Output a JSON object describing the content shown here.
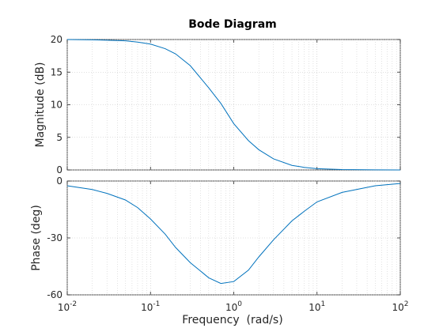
{
  "chart_data": {
    "type": "line",
    "title": "Bode Diagram",
    "xlabel": "Frequency  (rad/s)",
    "x_scale": "log",
    "xlim": [
      0.01,
      100
    ],
    "x_ticks": [
      0.01,
      0.1,
      1,
      10,
      100
    ],
    "x_tick_labels": [
      {
        "base": "10",
        "exp": "-2"
      },
      {
        "base": "10",
        "exp": "-1"
      },
      {
        "base": "10",
        "exp": "0"
      },
      {
        "base": "10",
        "exp": "1"
      },
      {
        "base": "10",
        "exp": "2"
      }
    ],
    "grid": true,
    "x": [
      0.01,
      0.02,
      0.03,
      0.05,
      0.07,
      0.1,
      0.15,
      0.2,
      0.3,
      0.5,
      0.7,
      1,
      1.5,
      2,
      3,
      5,
      7,
      10,
      20,
      50,
      100
    ],
    "panels": [
      {
        "ylabel": "Magnitude (dB)",
        "ylim": [
          0,
          20
        ],
        "y_ticks": [
          0,
          5,
          10,
          15,
          20
        ],
        "y_tick_labels": [
          "0",
          "5",
          "10",
          "15",
          "20"
        ],
        "y": [
          20,
          19.95,
          19.9,
          19.8,
          19.6,
          19.3,
          18.6,
          17.8,
          16.0,
          12.6,
          10.2,
          7.1,
          4.5,
          3.1,
          1.7,
          0.7,
          0.4,
          0.2,
          0.06,
          0.01,
          0
        ]
      },
      {
        "ylabel": "Phase (deg)",
        "ylim": [
          -60,
          0
        ],
        "y_ticks": [
          -60,
          -30,
          0
        ],
        "y_tick_labels": [
          "-60",
          "-30",
          "0"
        ],
        "y": [
          -2.5,
          -4.5,
          -6.5,
          -10,
          -14,
          -20,
          -28,
          -35,
          -43,
          -51,
          -54,
          -53,
          -47,
          -40,
          -31,
          -21,
          -16,
          -11,
          -6,
          -2.5,
          -1.3
        ]
      }
    ]
  }
}
